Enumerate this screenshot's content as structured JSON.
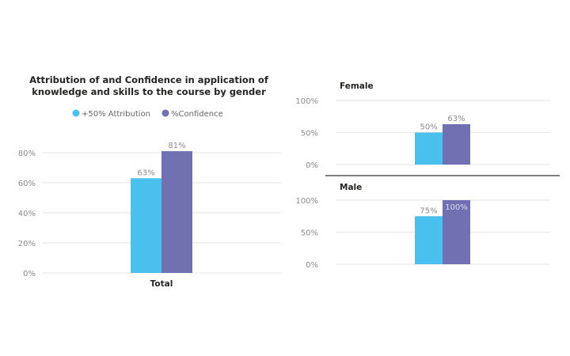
{
  "chart_data": [
    {
      "type": "bar",
      "title": [
        "Attribution of and Confidence in application of",
        "knowledge and skills to the course by gender"
      ],
      "legend": {
        "placement": "top-center",
        "entries": [
          {
            "name": "+50% Attribution",
            "color": "#4ac0ee"
          },
          {
            "name": "%Confidence",
            "color": "#7070b3"
          }
        ]
      },
      "categories": [
        "Total"
      ],
      "series": [
        {
          "name": "+50% Attribution",
          "values": [
            63
          ],
          "labels": [
            "63%"
          ]
        },
        {
          "name": "%Confidence",
          "values": [
            81
          ],
          "labels": [
            "81%"
          ]
        }
      ],
      "yticks": [
        "0%",
        "20%",
        "40%",
        "60%",
        "80%"
      ],
      "ylim": [
        0,
        100
      ],
      "grid": true
    },
    {
      "type": "bar",
      "panels": [
        {
          "title": "Female",
          "series": [
            {
              "name": "+50% Attribution",
              "values": [
                50
              ],
              "labels": [
                "50%"
              ]
            },
            {
              "name": "%Confidence",
              "values": [
                63
              ],
              "labels": [
                "63%"
              ]
            }
          ]
        },
        {
          "title": "Male",
          "series": [
            {
              "name": "+50% Attribution",
              "values": [
                75
              ],
              "labels": [
                "75%"
              ]
            },
            {
              "name": "%Confidence",
              "values": [
                100
              ],
              "labels": [
                "100%"
              ]
            }
          ]
        }
      ],
      "yticks": [
        "0%",
        "50%",
        "100%"
      ],
      "ylim": [
        0,
        100
      ],
      "grid": true
    }
  ]
}
